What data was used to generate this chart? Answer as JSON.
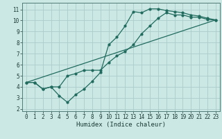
{
  "xlabel": "Humidex (Indice chaleur)",
  "bg_color": "#cce8e5",
  "grid_color": "#aaccca",
  "line_color": "#206b5e",
  "xlim": [
    -0.5,
    23.5
  ],
  "ylim": [
    1.8,
    11.6
  ],
  "xticks": [
    0,
    1,
    2,
    3,
    4,
    5,
    6,
    7,
    8,
    9,
    10,
    11,
    12,
    13,
    14,
    15,
    16,
    17,
    18,
    19,
    20,
    21,
    22,
    23
  ],
  "yticks": [
    2,
    3,
    4,
    5,
    6,
    7,
    8,
    9,
    10,
    11
  ],
  "line1_x": [
    0,
    1,
    2,
    3,
    4,
    5,
    6,
    7,
    8,
    9,
    10,
    11,
    12,
    13,
    14,
    15,
    16,
    17,
    18,
    19,
    20,
    21,
    22,
    23
  ],
  "line1_y": [
    4.4,
    4.4,
    3.8,
    4.0,
    4.0,
    5.0,
    5.2,
    5.5,
    5.5,
    5.5,
    6.2,
    6.8,
    7.2,
    7.8,
    8.8,
    9.5,
    10.2,
    10.7,
    10.5,
    10.5,
    10.3,
    10.3,
    10.1,
    10.05
  ],
  "line2_x": [
    0,
    1,
    2,
    3,
    4,
    5,
    6,
    7,
    8,
    9,
    10,
    11,
    12,
    13,
    14,
    15,
    16,
    17,
    18,
    19,
    20,
    21,
    22,
    23
  ],
  "line2_y": [
    4.4,
    4.4,
    3.8,
    4.0,
    3.2,
    2.6,
    3.3,
    3.8,
    4.5,
    5.3,
    7.8,
    8.5,
    9.5,
    10.8,
    10.7,
    11.05,
    11.05,
    10.9,
    10.8,
    10.7,
    10.5,
    10.4,
    10.2,
    10.05
  ],
  "line3_x": [
    0,
    23
  ],
  "line3_y": [
    4.4,
    10.05
  ]
}
